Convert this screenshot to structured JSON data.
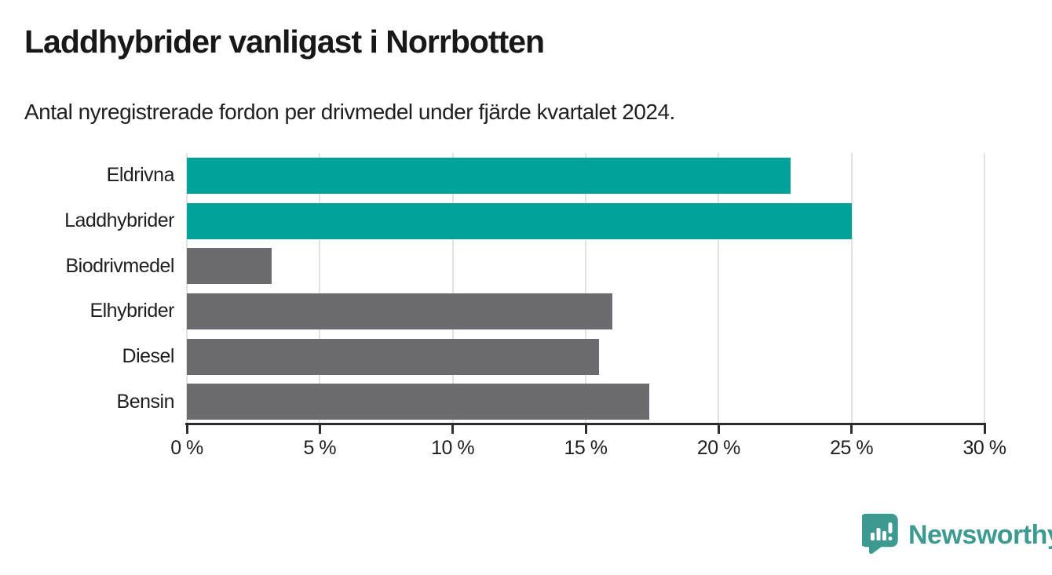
{
  "header": {
    "title": "Laddhybrider vanligast i Norrbotten",
    "subtitle": "Antal nyregistrerade fordon per drivmedel under fjärde kvartalet 2024."
  },
  "chart_data": {
    "type": "bar",
    "orientation": "horizontal",
    "title": "Laddhybrider vanligast i Norrbotten",
    "subtitle": "Antal nyregistrerade fordon per drivmedel under fjärde kvartalet 2024.",
    "categories": [
      "Eldrivna",
      "Laddhybrider",
      "Biodrivmedel",
      "Elhybrider",
      "Diesel",
      "Bensin"
    ],
    "values": [
      22.7,
      25.0,
      3.2,
      16.0,
      15.5,
      17.4
    ],
    "highlighted": [
      true,
      true,
      false,
      false,
      false,
      false
    ],
    "xlabel": "",
    "ylabel": "",
    "xlim": [
      0,
      30
    ],
    "x_tick_values": [
      0,
      5,
      10,
      15,
      20,
      25,
      30
    ],
    "x_ticks": [
      "0 %",
      "5 %",
      "10 %",
      "15 %",
      "20 %",
      "25 %",
      "30 %"
    ],
    "grid": true,
    "legend": "none",
    "colors": {
      "highlight": "#00A29A",
      "default": "#6C6B70",
      "gridline": "#E2E2E2",
      "axis": "#2D2D2D"
    }
  },
  "branding": {
    "logo_text": "Newsworthy",
    "logo_color": "#3D9A91",
    "logo_icon": "bar-chart-speech-bubble-icon"
  }
}
